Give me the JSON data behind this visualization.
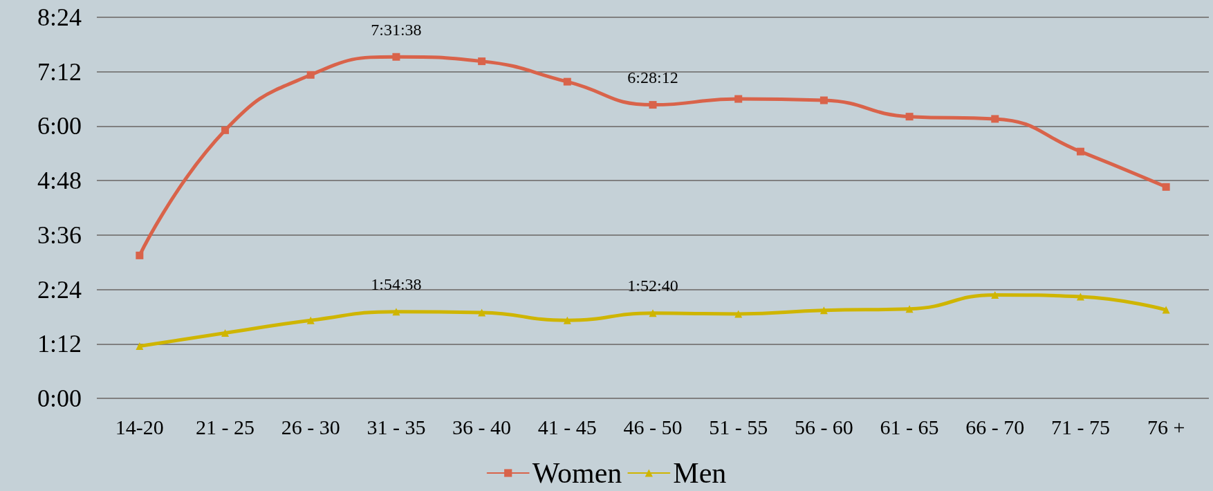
{
  "chart_data": {
    "type": "line",
    "categories": [
      "14-20",
      "21 - 25",
      "26 - 30",
      "31 - 35",
      "36 - 40",
      "41 - 45",
      "46 - 50",
      "51 - 55",
      "56 - 60",
      "61 - 65",
      "66 - 70",
      "71 - 75",
      "76 +"
    ],
    "series": [
      {
        "name": "Women",
        "color": "#d9634a",
        "marker": "square",
        "values": [
          3.15,
          5.91,
          7.13,
          7.527222,
          7.43,
          6.98,
          6.47,
          6.6,
          6.57,
          6.21,
          6.16,
          5.44,
          4.66
        ],
        "value_labels": [
          null,
          null,
          null,
          "7:31:38",
          null,
          null,
          "6:28:12",
          null,
          null,
          null,
          null,
          null,
          null
        ]
      },
      {
        "name": "Men",
        "color": "#cfb500",
        "marker": "triangle",
        "values": [
          1.15,
          1.44,
          1.72,
          1.910556,
          1.89,
          1.72,
          1.877778,
          1.86,
          1.94,
          1.97,
          2.28,
          2.24,
          1.95
        ],
        "value_labels": [
          null,
          null,
          null,
          "1:54:38",
          null,
          null,
          "1:52:40",
          null,
          null,
          null,
          null,
          null,
          null
        ]
      }
    ],
    "ylim": [
      0,
      8.4
    ],
    "yticks": [
      {
        "value": 0,
        "label": "0:00"
      },
      {
        "value": 1.2,
        "label": "1:12"
      },
      {
        "value": 2.4,
        "label": "2:24"
      },
      {
        "value": 3.6,
        "label": "3:36"
      },
      {
        "value": 4.8,
        "label": "4:48"
      },
      {
        "value": 6,
        "label": "6:00"
      },
      {
        "value": 7.2,
        "label": "7:12"
      },
      {
        "value": 8.4,
        "label": "8:24"
      }
    ],
    "grid": "y",
    "legend": "bottom",
    "line_style": "solid"
  }
}
